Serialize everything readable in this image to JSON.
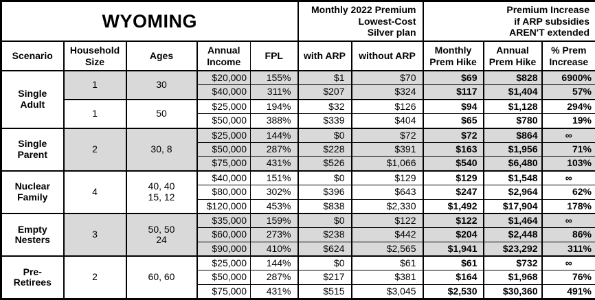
{
  "title": "WYOMING",
  "colors": {
    "shaded_row": "#d9d9d9",
    "border": "#000000",
    "text": "#000000",
    "background": "#ffffff"
  },
  "header": {
    "premium_group": "Monthly 2022 Premium\nLowest-Cost\nSilver plan",
    "increase_group": "Premium Increase\nif ARP subsidies\nAREN'T extended",
    "columns": [
      "Scenario",
      "Household\nSize",
      "Ages",
      "Annual\nIncome",
      "FPL",
      "with ARP",
      "without ARP",
      "Monthly\nPrem Hike",
      "Annual\nPrem Hike",
      "% Prem\nIncrease"
    ]
  },
  "chart_data": {
    "type": "table",
    "title": "WYOMING",
    "column_group_spans": {
      "state_block_columns": [
        "Scenario",
        "Household Size",
        "Ages",
        "Annual Income",
        "FPL"
      ],
      "premium_block_columns": [
        "with ARP",
        "without ARP"
      ],
      "increase_block_columns": [
        "Monthly Prem Hike",
        "Annual Prem Hike",
        "% Prem Increase"
      ]
    },
    "groups": [
      {
        "scenario": "Single\nAdult",
        "subgroups": [
          {
            "household": "1",
            "ages": "30",
            "shaded": true,
            "rows": [
              {
                "income": "$20,000",
                "fpl": "155%",
                "with_arp": "$1",
                "without_arp": "$70",
                "monthly_hike": "$69",
                "annual_hike": "$828",
                "pct_increase": "6900%"
              },
              {
                "income": "$40,000",
                "fpl": "311%",
                "with_arp": "$207",
                "without_arp": "$324",
                "monthly_hike": "$117",
                "annual_hike": "$1,404",
                "pct_increase": "57%"
              }
            ]
          },
          {
            "household": "1",
            "ages": "50",
            "shaded": false,
            "rows": [
              {
                "income": "$25,000",
                "fpl": "194%",
                "with_arp": "$32",
                "without_arp": "$126",
                "monthly_hike": "$94",
                "annual_hike": "$1,128",
                "pct_increase": "294%"
              },
              {
                "income": "$50,000",
                "fpl": "388%",
                "with_arp": "$339",
                "without_arp": "$404",
                "monthly_hike": "$65",
                "annual_hike": "$780",
                "pct_increase": "19%"
              }
            ]
          }
        ]
      },
      {
        "scenario": "Single\nParent",
        "subgroups": [
          {
            "household": "2",
            "ages": "30, 8",
            "shaded": true,
            "rows": [
              {
                "income": "$25,000",
                "fpl": "144%",
                "with_arp": "$0",
                "without_arp": "$72",
                "monthly_hike": "$72",
                "annual_hike": "$864",
                "pct_increase": "∞"
              },
              {
                "income": "$50,000",
                "fpl": "287%",
                "with_arp": "$228",
                "without_arp": "$391",
                "monthly_hike": "$163",
                "annual_hike": "$1,956",
                "pct_increase": "71%"
              },
              {
                "income": "$75,000",
                "fpl": "431%",
                "with_arp": "$526",
                "without_arp": "$1,066",
                "monthly_hike": "$540",
                "annual_hike": "$6,480",
                "pct_increase": "103%"
              }
            ]
          }
        ]
      },
      {
        "scenario": "Nuclear\nFamily",
        "subgroups": [
          {
            "household": "4",
            "ages": "40, 40\n15, 12",
            "shaded": false,
            "rows": [
              {
                "income": "$40,000",
                "fpl": "151%",
                "with_arp": "$0",
                "without_arp": "$129",
                "monthly_hike": "$129",
                "annual_hike": "$1,548",
                "pct_increase": "∞"
              },
              {
                "income": "$80,000",
                "fpl": "302%",
                "with_arp": "$396",
                "without_arp": "$643",
                "monthly_hike": "$247",
                "annual_hike": "$2,964",
                "pct_increase": "62%"
              },
              {
                "income": "$120,000",
                "fpl": "453%",
                "with_arp": "$838",
                "without_arp": "$2,330",
                "monthly_hike": "$1,492",
                "annual_hike": "$17,904",
                "pct_increase": "178%"
              }
            ]
          }
        ]
      },
      {
        "scenario": "Empty\nNesters",
        "subgroups": [
          {
            "household": "3",
            "ages": "50, 50\n24",
            "shaded": true,
            "rows": [
              {
                "income": "$35,000",
                "fpl": "159%",
                "with_arp": "$0",
                "without_arp": "$122",
                "monthly_hike": "$122",
                "annual_hike": "$1,464",
                "pct_increase": "∞"
              },
              {
                "income": "$60,000",
                "fpl": "273%",
                "with_arp": "$238",
                "without_arp": "$442",
                "monthly_hike": "$204",
                "annual_hike": "$2,448",
                "pct_increase": "86%"
              },
              {
                "income": "$90,000",
                "fpl": "410%",
                "with_arp": "$624",
                "without_arp": "$2,565",
                "monthly_hike": "$1,941",
                "annual_hike": "$23,292",
                "pct_increase": "311%"
              }
            ]
          }
        ]
      },
      {
        "scenario": "Pre-\nRetirees",
        "subgroups": [
          {
            "household": "2",
            "ages": "60, 60",
            "shaded": false,
            "rows": [
              {
                "income": "$25,000",
                "fpl": "144%",
                "with_arp": "$0",
                "without_arp": "$61",
                "monthly_hike": "$61",
                "annual_hike": "$732",
                "pct_increase": "∞"
              },
              {
                "income": "$50,000",
                "fpl": "287%",
                "with_arp": "$217",
                "without_arp": "$381",
                "monthly_hike": "$164",
                "annual_hike": "$1,968",
                "pct_increase": "76%"
              },
              {
                "income": "$75,000",
                "fpl": "431%",
                "with_arp": "$515",
                "without_arp": "$3,045",
                "monthly_hike": "$2,530",
                "annual_hike": "$30,360",
                "pct_increase": "491%"
              }
            ]
          }
        ]
      }
    ]
  }
}
